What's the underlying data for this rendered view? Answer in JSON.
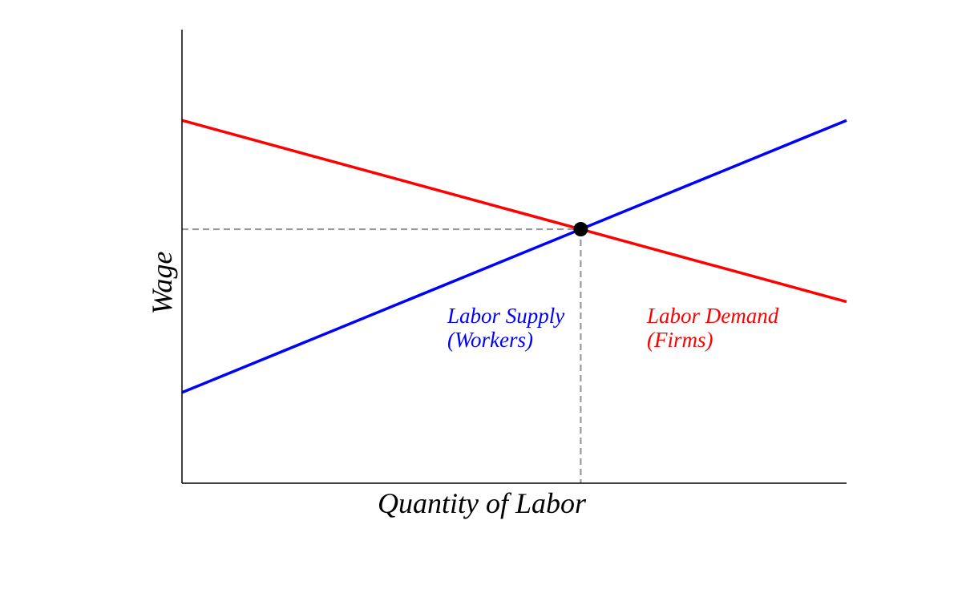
{
  "chart_data": {
    "type": "line",
    "title": "",
    "xlabel": "Quantity of Labor",
    "ylabel": "Wage",
    "xlim": [
      0,
      10
    ],
    "ylim": [
      0,
      10
    ],
    "ticks": false,
    "grid": false,
    "series": [
      {
        "name": "Labor Supply (Workers)",
        "label_lines": [
          "Labor Supply",
          "(Workers)"
        ],
        "color": "#0000ff",
        "x": [
          0,
          10
        ],
        "y": [
          2,
          8
        ]
      },
      {
        "name": "Labor Demand (Firms)",
        "label_lines": [
          "Labor Demand",
          "(Firms)"
        ],
        "color": "#ff0000",
        "x": [
          0,
          10
        ],
        "y": [
          8,
          4
        ]
      }
    ],
    "equilibrium": {
      "x": 6,
      "y": 5.6,
      "color": "#000000"
    },
    "guide_color": "#999999"
  }
}
